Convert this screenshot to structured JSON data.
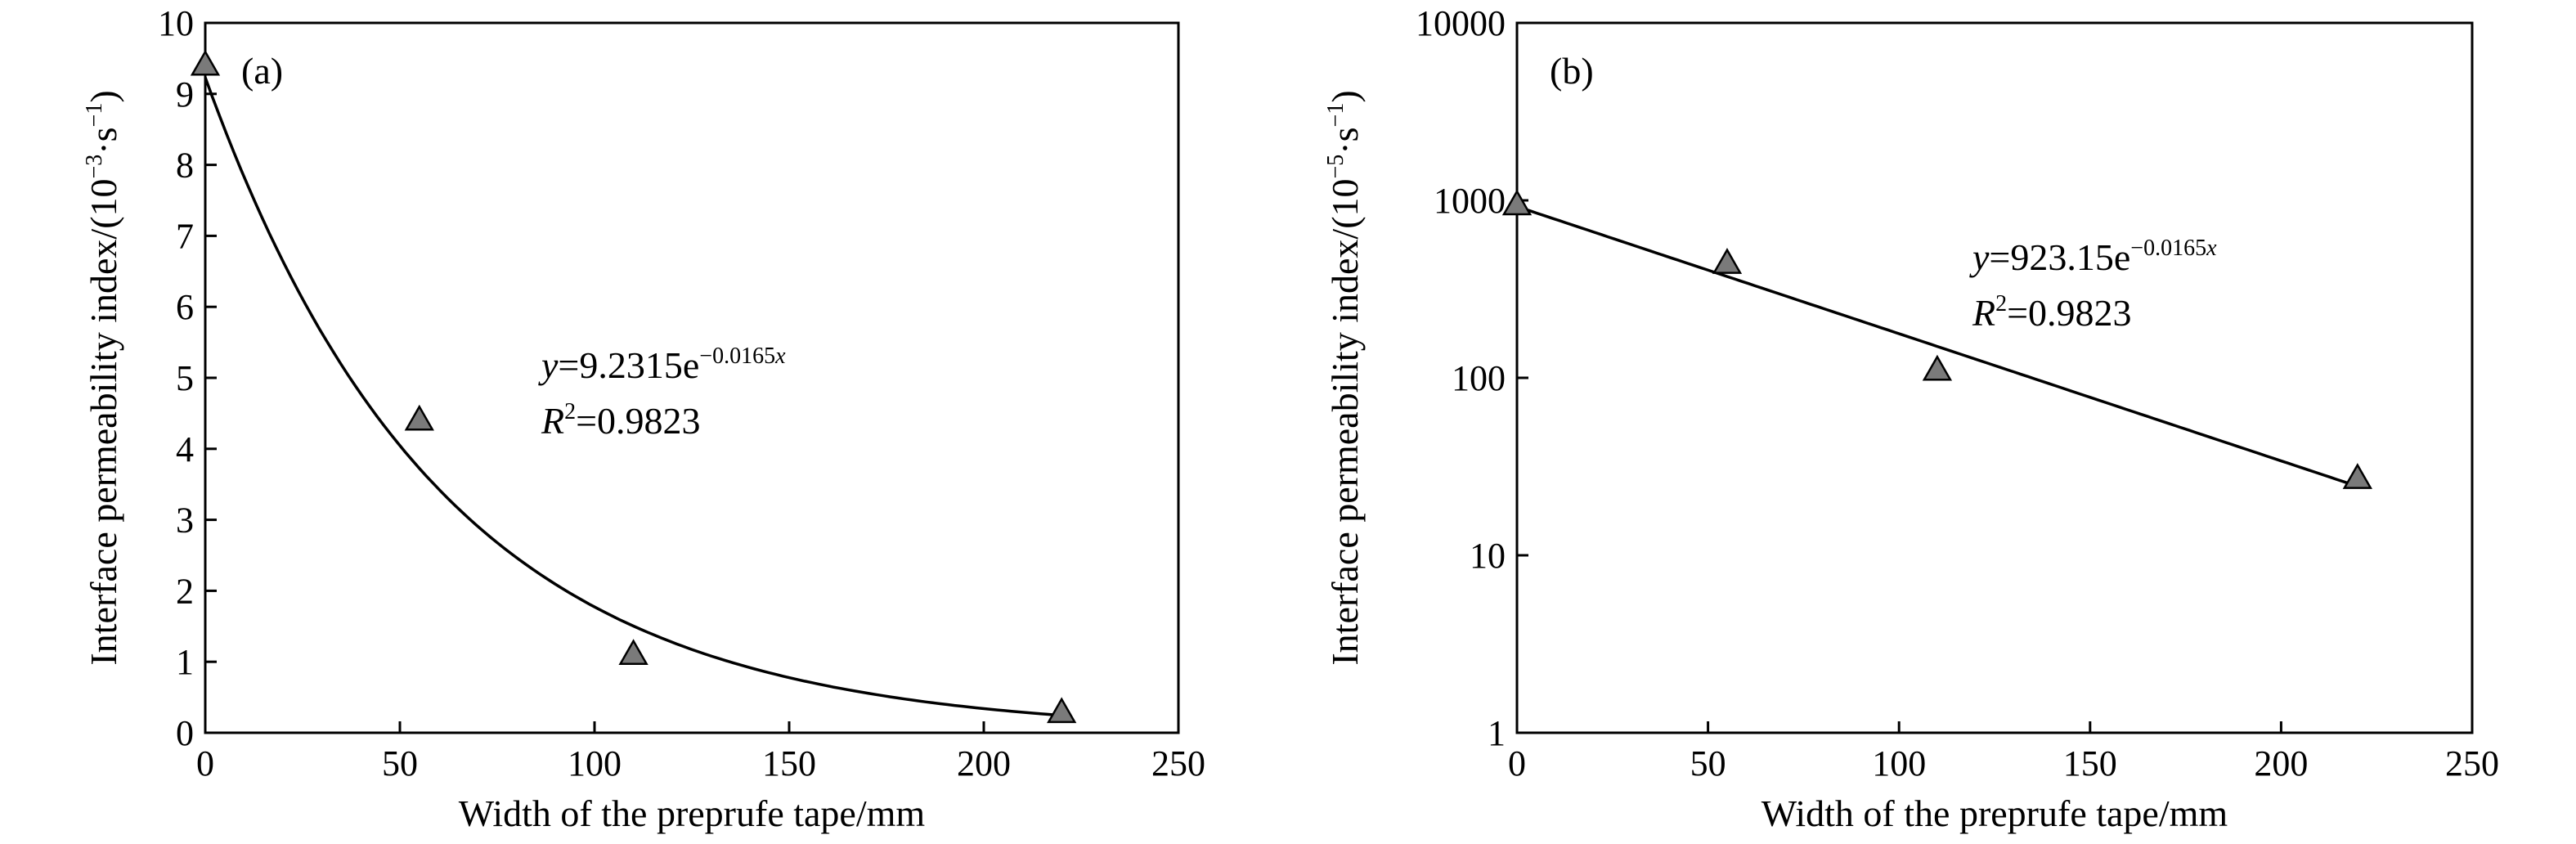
{
  "chart_data": [
    {
      "type": "scatter",
      "panel_label": "(a)",
      "xlabel": "Width of the preprufe tape/mm",
      "ylabel": "Interface permeability index/(10",
      "ylabel_exp": "−3",
      "ylabel_unit": "·s",
      "ylabel_unit_exp": "−1",
      "ylabel_close": ")",
      "xlim": [
        0,
        250
      ],
      "ylim": [
        0,
        10
      ],
      "yscale": "linear",
      "xticks": [
        "0",
        "50",
        "100",
        "150",
        "200",
        "250"
      ],
      "yticks": [
        "0",
        "1",
        "2",
        "3",
        "4",
        "5",
        "6",
        "7",
        "8",
        "9",
        "10"
      ],
      "grid": false,
      "series": [
        {
          "marker": "triangle",
          "x": [
            0,
            55,
            110,
            220
          ],
          "y": [
            9.4,
            4.4,
            1.1,
            0.28
          ]
        }
      ],
      "fit": {
        "a": 9.2315,
        "b": -0.0165
      },
      "equation": {
        "y_var": "y",
        "y_rhs": "=9.2315e",
        "y_exp": "−0.0165",
        "y_exp_var": "x",
        "r_var": "R",
        "r_sup": "2",
        "r_rhs": "=0.9823"
      }
    },
    {
      "type": "scatter",
      "panel_label": "(b)",
      "xlabel": "Width of the preprufe tape/mm",
      "ylabel": "Interface permeability index/(10",
      "ylabel_exp": "−5",
      "ylabel_unit": "·s",
      "ylabel_unit_exp": "−1",
      "ylabel_close": ")",
      "xlim": [
        0,
        250
      ],
      "ylim": [
        1,
        10000
      ],
      "yscale": "log",
      "xticks": [
        "0",
        "50",
        "100",
        "150",
        "200",
        "250"
      ],
      "yticks": [
        "1",
        "10",
        "100",
        "1000",
        "10000"
      ],
      "grid": false,
      "series": [
        {
          "marker": "triangle",
          "x": [
            0,
            55,
            110,
            220
          ],
          "y": [
            940,
            440,
            110,
            27
          ]
        }
      ],
      "fit": {
        "a": 923.15,
        "b": -0.0165
      },
      "equation": {
        "y_var": "y",
        "y_rhs": "=923.15e",
        "y_exp": "−0.0165",
        "y_exp_var": "x",
        "r_var": "R",
        "r_sup": "2",
        "r_rhs": "=0.9823"
      }
    }
  ]
}
